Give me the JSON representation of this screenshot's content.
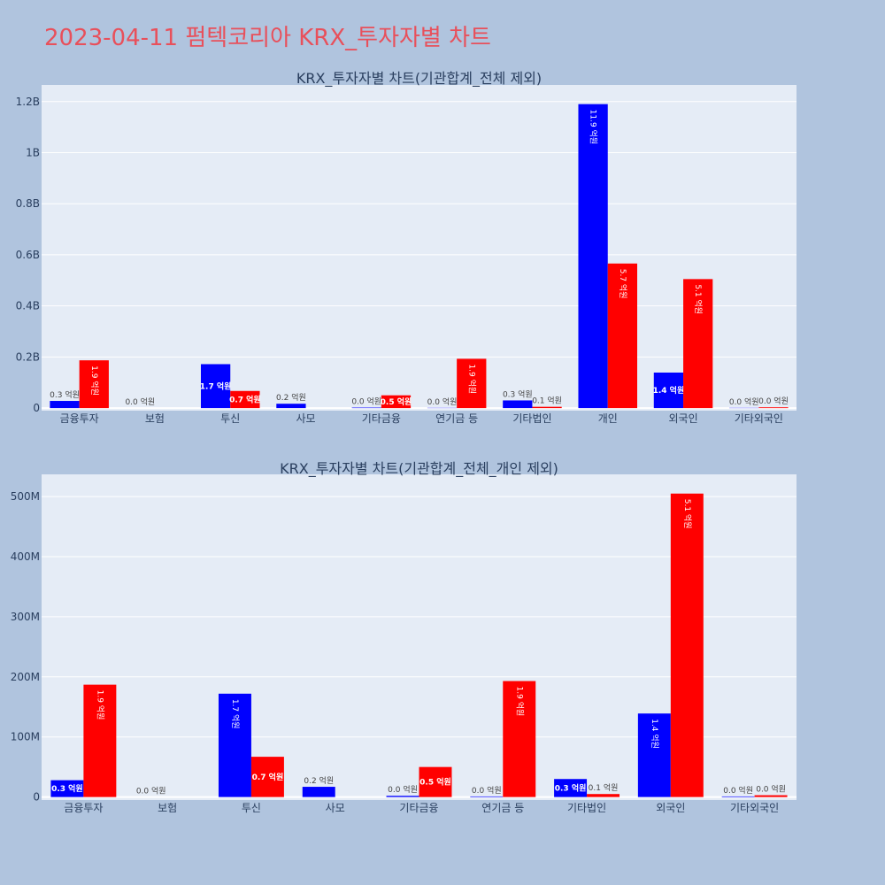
{
  "page": {
    "title": "2023-04-11 펌텍코리아 KRX_투자자별 차트"
  },
  "colors": {
    "buy": "#0000ff",
    "sell": "#ff0000",
    "plot_bg": "#e5ecf6",
    "page_bg": "#b0c4de",
    "title": "#e8505b"
  },
  "chart_data": [
    {
      "type": "bar",
      "title": "KRX_투자자별 차트(기관합계_전체 제외)",
      "categories": [
        "금융투자",
        "보험",
        "투신",
        "사모",
        "기타금융",
        "연기금 등",
        "기타법인",
        "개인",
        "외국인",
        "기타외국인"
      ],
      "series": [
        {
          "color": "#0000ff",
          "values": [
            28000000,
            0,
            172000000,
            17000000,
            2000000,
            1000000,
            30000000,
            1190000000,
            139000000,
            1000000
          ],
          "labels": [
            "0.3 억원",
            "0.0 억원",
            "1.7 억원",
            "0.2 억원",
            "0.0 억원",
            "0.0 억원",
            "0.3 억원",
            "11.9 억원",
            "1.4 억원",
            "0.0 억원"
          ]
        },
        {
          "color": "#ff0000",
          "values": [
            187000000,
            0,
            67000000,
            0,
            50000000,
            193000000,
            5000000,
            566000000,
            505000000,
            3000000
          ],
          "labels": [
            "1.9 억원",
            "",
            "0.7 억원",
            "",
            "0.5 억원",
            "1.9 억원",
            "0.1 억원",
            "5.7 억원",
            "5.1 억원",
            "0.0 억원"
          ]
        }
      ],
      "ylim": [
        -10000000,
        1265000000
      ],
      "yticks": [
        0,
        200000000,
        400000000,
        600000000,
        800000000,
        1000000000,
        1200000000
      ],
      "ytick_labels": [
        "0",
        "0.2B",
        "0.4B",
        "0.6B",
        "0.8B",
        "1B",
        "1.2B"
      ],
      "grid": true
    },
    {
      "type": "bar",
      "title": "KRX_투자자별 차트(기관합계_전체_개인 제외)",
      "categories": [
        "금융투자",
        "보험",
        "투신",
        "사모",
        "기타금융",
        "연기금 등",
        "기타법인",
        "외국인",
        "기타외국인"
      ],
      "series": [
        {
          "color": "#0000ff",
          "values": [
            28000000,
            0,
            172000000,
            17000000,
            2000000,
            1000000,
            30000000,
            139000000,
            1000000
          ],
          "labels": [
            "0.3 억원",
            "0.0 억원",
            "1.7 억원",
            "0.2 억원",
            "0.0 억원",
            "0.0 억원",
            "0.3 억원",
            "1.4 억원",
            "0.0 억원"
          ]
        },
        {
          "color": "#ff0000",
          "values": [
            187000000,
            0,
            67000000,
            0,
            50000000,
            193000000,
            5000000,
            505000000,
            3000000
          ],
          "labels": [
            "1.9 억원",
            "",
            "0.7 억원",
            "",
            "0.5 억원",
            "1.9 억원",
            "0.1 억원",
            "5.1 억원",
            "0.0 억원"
          ]
        }
      ],
      "ylim": [
        -5000000,
        537000000
      ],
      "yticks": [
        0,
        100000000,
        200000000,
        300000000,
        400000000,
        500000000
      ],
      "ytick_labels": [
        "0",
        "100M",
        "200M",
        "300M",
        "400M",
        "500M"
      ],
      "grid": true
    }
  ]
}
